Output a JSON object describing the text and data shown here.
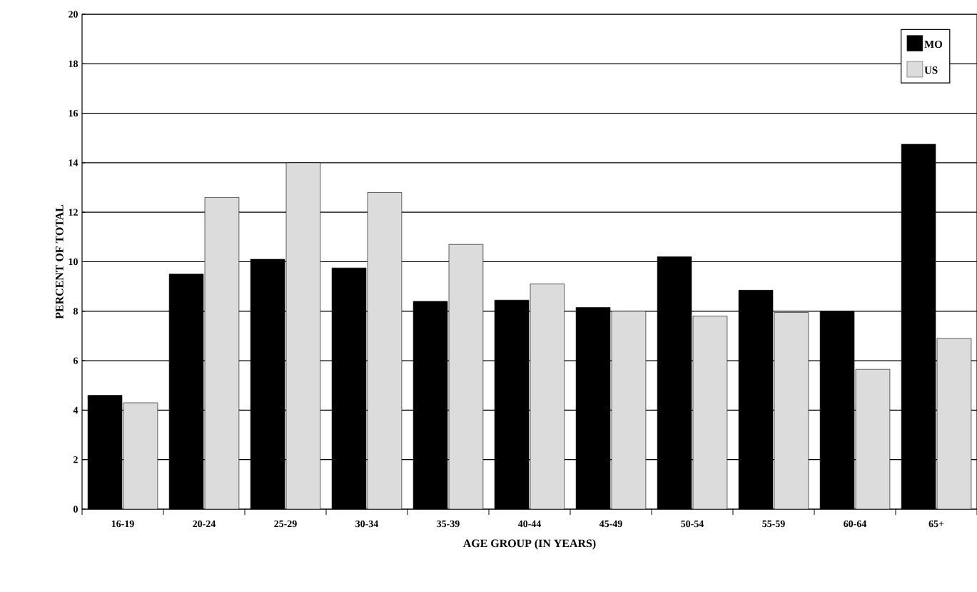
{
  "chart_data": {
    "type": "bar",
    "xlabel": "AGE GROUP (IN YEARS)",
    "ylabel": "PERCENT OF TOTAL",
    "categories": [
      "16-19",
      "20-24",
      "25-29",
      "30-34",
      "35-39",
      "40-44",
      "45-49",
      "50-54",
      "55-59",
      "60-64",
      "65+"
    ],
    "series": [
      {
        "name": "MO",
        "color": "#000000",
        "values": [
          4.6,
          9.5,
          10.1,
          9.75,
          8.4,
          8.45,
          8.15,
          10.2,
          8.85,
          8.0,
          14.75
        ]
      },
      {
        "name": "US",
        "color": "#dcdcdc",
        "values": [
          4.3,
          12.6,
          14.0,
          12.8,
          10.7,
          9.1,
          8.0,
          7.8,
          7.95,
          5.65,
          6.9
        ]
      }
    ],
    "ylim": [
      0,
      20
    ],
    "yticks": [
      0,
      2,
      4,
      6,
      8,
      10,
      12,
      14,
      16,
      18,
      20
    ],
    "grid": "y",
    "legend": "top right"
  }
}
